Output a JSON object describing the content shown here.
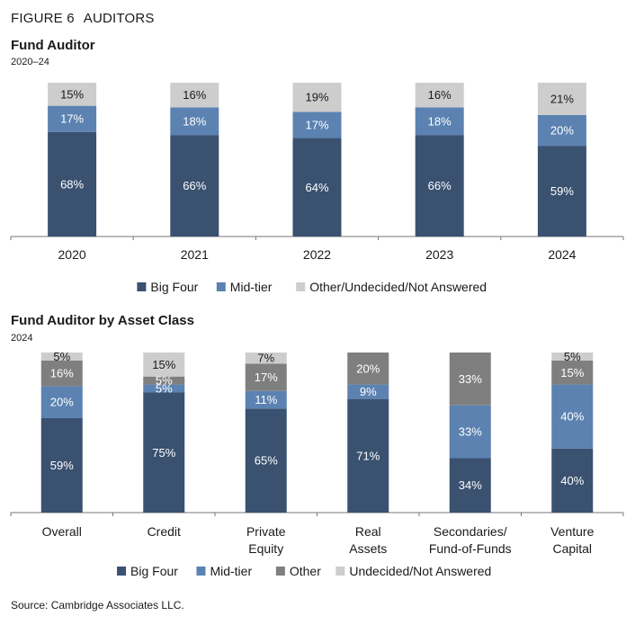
{
  "figure": {
    "number": "FIGURE 6",
    "title": "AUDITORS"
  },
  "source": "Source: Cambridge Associates LLC.",
  "colors": {
    "big_four": "#3a5170",
    "mid_tier": "#5b82b1",
    "other": "#7f7f7f",
    "undecided": "#cdcdcd"
  },
  "chart_data": [
    {
      "type": "bar",
      "stacked": true,
      "title": "Fund Auditor",
      "subtitle": "2020–24",
      "categories": [
        "2020",
        "2021",
        "2022",
        "2023",
        "2024"
      ],
      "series": [
        {
          "name": "Big Four",
          "color": "#3a5170",
          "values": [
            68,
            66,
            64,
            66,
            59
          ],
          "labels": [
            "68%",
            "66%",
            "64%",
            "66%",
            "59%"
          ]
        },
        {
          "name": "Mid-tier",
          "color": "#5b82b1",
          "values": [
            17,
            18,
            17,
            18,
            20
          ],
          "labels": [
            "17%",
            "18%",
            "17%",
            "18%",
            "20%"
          ]
        },
        {
          "name": "Other/Undecided/Not Answered",
          "color": "#cdcdcd",
          "values": [
            15,
            16,
            19,
            16,
            21
          ],
          "labels": [
            "15%",
            "16%",
            "19%",
            "16%",
            "21%"
          ]
        }
      ],
      "ylim": [
        0,
        100
      ],
      "legend": "bottom"
    },
    {
      "type": "bar",
      "stacked": true,
      "title": "Fund Auditor by Asset Class",
      "subtitle": "2024",
      "categories": [
        [
          "Overall"
        ],
        [
          "Credit"
        ],
        [
          "Private",
          "Equity"
        ],
        [
          "Real",
          "Assets"
        ],
        [
          "Secondaries/",
          "Fund-of-Funds"
        ],
        [
          "Venture",
          "Capital"
        ]
      ],
      "series": [
        {
          "name": "Big Four",
          "color": "#3a5170",
          "values": [
            59,
            75,
            65,
            71,
            34,
            40
          ],
          "labels": [
            "59%",
            "75%",
            "65%",
            "71%",
            "34%",
            "40%"
          ]
        },
        {
          "name": "Mid-tier",
          "color": "#5b82b1",
          "values": [
            20,
            5,
            11,
            9,
            33,
            40
          ],
          "labels": [
            "20%",
            "5%",
            "11%",
            "9%",
            "33%",
            "40%"
          ]
        },
        {
          "name": "Other",
          "color": "#7f7f7f",
          "values": [
            16,
            5,
            17,
            20,
            33,
            15
          ],
          "labels": [
            "16%",
            "5%",
            "17%",
            "20%",
            "33%",
            "15%"
          ]
        },
        {
          "name": "Undecided/Not Answered",
          "color": "#cdcdcd",
          "values": [
            5,
            15,
            7,
            0,
            0,
            5
          ],
          "labels": [
            "5%",
            "15%",
            "7%",
            "",
            "",
            "5%"
          ]
        }
      ],
      "ylim": [
        0,
        100
      ],
      "legend": "bottom"
    }
  ]
}
